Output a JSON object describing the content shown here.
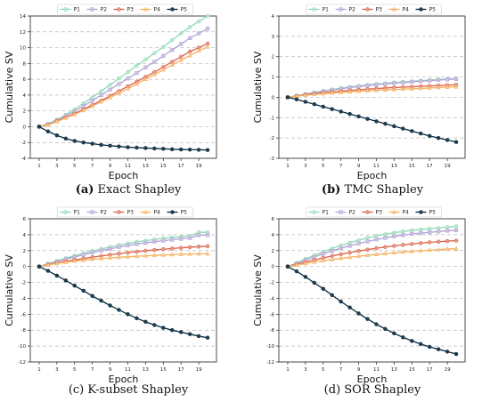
{
  "chart_data": [
    {
      "type": "line",
      "caption_label": "(a)",
      "caption_text": "Exact Shapley",
      "caption_bold": true,
      "xlabel": "Epoch",
      "ylabel": "Cumulative SV",
      "xlim": [
        0,
        21
      ],
      "ylim": [
        -4,
        14
      ],
      "yticks": [
        -4,
        -2,
        0,
        2,
        4,
        6,
        8,
        10,
        12,
        14
      ],
      "xticks": [
        1,
        3,
        5,
        7,
        9,
        11,
        13,
        15,
        17,
        19
      ],
      "x": [
        1,
        2,
        3,
        4,
        5,
        6,
        7,
        8,
        9,
        10,
        11,
        12,
        13,
        14,
        15,
        16,
        17,
        18,
        19,
        20
      ],
      "grid": "y-dashed",
      "legend": "top",
      "series": [
        {
          "name": "P1",
          "values": [
            0.0,
            0.35,
            0.9,
            1.5,
            2.2,
            2.95,
            3.7,
            4.5,
            5.3,
            6.1,
            6.9,
            7.7,
            8.5,
            9.3,
            10.1,
            10.95,
            11.8,
            12.6,
            13.3,
            14.0
          ]
        },
        {
          "name": "P2",
          "values": [
            0.0,
            0.3,
            0.8,
            1.35,
            1.95,
            2.6,
            3.3,
            4.0,
            4.7,
            5.4,
            6.1,
            6.8,
            7.5,
            8.2,
            8.95,
            9.7,
            10.45,
            11.2,
            11.8,
            12.4
          ]
        },
        {
          "name": "P3",
          "values": [
            0.0,
            0.25,
            0.7,
            1.15,
            1.65,
            2.2,
            2.75,
            3.3,
            3.9,
            4.5,
            5.1,
            5.7,
            6.3,
            6.9,
            7.55,
            8.2,
            8.85,
            9.5,
            10.0,
            10.5
          ]
        },
        {
          "name": "P4",
          "values": [
            0.0,
            0.22,
            0.65,
            1.1,
            1.55,
            2.05,
            2.6,
            3.15,
            3.7,
            4.25,
            4.8,
            5.4,
            6.0,
            6.6,
            7.2,
            7.8,
            8.4,
            9.0,
            9.6,
            10.1
          ]
        },
        {
          "name": "P5",
          "values": [
            0.0,
            -0.6,
            -1.1,
            -1.5,
            -1.8,
            -2.0,
            -2.15,
            -2.3,
            -2.4,
            -2.5,
            -2.6,
            -2.65,
            -2.7,
            -2.75,
            -2.8,
            -2.85,
            -2.88,
            -2.9,
            -2.92,
            -2.95
          ]
        }
      ]
    },
    {
      "type": "line",
      "caption_label": "(b)",
      "caption_text": "TMC Shapley",
      "caption_bold": true,
      "xlabel": "Epoch",
      "ylabel": "Cumulative SV",
      "xlim": [
        0,
        21
      ],
      "ylim": [
        -3,
        4
      ],
      "yticks": [
        -3,
        -2,
        -1,
        0,
        1,
        2,
        3,
        4
      ],
      "xticks": [
        1,
        3,
        5,
        7,
        9,
        11,
        13,
        15,
        17,
        19
      ],
      "x": [
        1,
        2,
        3,
        4,
        5,
        6,
        7,
        8,
        9,
        10,
        11,
        12,
        13,
        14,
        15,
        16,
        17,
        18,
        19,
        20
      ],
      "grid": "y-dashed",
      "legend": "top",
      "series": [
        {
          "name": "P1",
          "values": [
            0.0,
            0.08,
            0.16,
            0.24,
            0.32,
            0.39,
            0.45,
            0.51,
            0.56,
            0.61,
            0.65,
            0.69,
            0.73,
            0.76,
            0.79,
            0.82,
            0.85,
            0.88,
            0.9,
            0.92
          ]
        },
        {
          "name": "P2",
          "values": [
            0.0,
            0.07,
            0.15,
            0.22,
            0.29,
            0.36,
            0.42,
            0.48,
            0.53,
            0.58,
            0.62,
            0.66,
            0.7,
            0.73,
            0.76,
            0.79,
            0.82,
            0.85,
            0.88,
            0.9
          ]
        },
        {
          "name": "P3",
          "values": [
            0.0,
            0.06,
            0.12,
            0.17,
            0.22,
            0.26,
            0.3,
            0.34,
            0.37,
            0.4,
            0.43,
            0.46,
            0.48,
            0.5,
            0.52,
            0.54,
            0.56,
            0.58,
            0.6,
            0.62
          ]
        },
        {
          "name": "P4",
          "values": [
            0.0,
            0.05,
            0.1,
            0.14,
            0.18,
            0.21,
            0.24,
            0.27,
            0.3,
            0.32,
            0.34,
            0.36,
            0.38,
            0.4,
            0.42,
            0.44,
            0.46,
            0.48,
            0.5,
            0.52
          ]
        },
        {
          "name": "P5",
          "values": [
            0.0,
            -0.1,
            -0.22,
            -0.34,
            -0.46,
            -0.58,
            -0.7,
            -0.82,
            -0.94,
            -1.06,
            -1.18,
            -1.3,
            -1.42,
            -1.54,
            -1.66,
            -1.78,
            -1.9,
            -2.0,
            -2.1,
            -2.2
          ]
        }
      ]
    },
    {
      "type": "line",
      "caption_label": "(c)",
      "caption_text": "K-subset Shapley",
      "caption_bold": false,
      "xlabel": "Epoch",
      "ylabel": "Cumulative SV",
      "xlim": [
        0,
        21
      ],
      "ylim": [
        -12,
        6
      ],
      "yticks": [
        -12,
        -10,
        -8,
        -6,
        -4,
        -2,
        0,
        2,
        4,
        6
      ],
      "xticks": [
        1,
        3,
        5,
        7,
        9,
        11,
        13,
        15,
        17,
        19
      ],
      "x": [
        1,
        2,
        3,
        4,
        5,
        6,
        7,
        8,
        9,
        10,
        11,
        12,
        13,
        14,
        15,
        16,
        17,
        18,
        19,
        20
      ],
      "grid": "y-dashed",
      "legend": "top",
      "series": [
        {
          "name": "P1",
          "values": [
            0.0,
            0.35,
            0.7,
            1.05,
            1.35,
            1.65,
            1.95,
            2.2,
            2.45,
            2.7,
            2.9,
            3.1,
            3.25,
            3.4,
            3.55,
            3.65,
            3.75,
            3.85,
            4.3,
            4.3
          ]
        },
        {
          "name": "P2",
          "values": [
            0.0,
            0.3,
            0.62,
            0.92,
            1.2,
            1.48,
            1.75,
            2.0,
            2.22,
            2.45,
            2.65,
            2.82,
            2.98,
            3.12,
            3.25,
            3.37,
            3.48,
            3.58,
            3.95,
            3.95
          ]
        },
        {
          "name": "P3",
          "values": [
            0.0,
            0.22,
            0.44,
            0.64,
            0.82,
            1.0,
            1.17,
            1.33,
            1.48,
            1.62,
            1.75,
            1.87,
            1.98,
            2.08,
            2.17,
            2.26,
            2.35,
            2.43,
            2.5,
            2.55
          ]
        },
        {
          "name": "P4",
          "values": [
            0.0,
            0.2,
            0.38,
            0.54,
            0.68,
            0.8,
            0.91,
            1.0,
            1.08,
            1.16,
            1.23,
            1.29,
            1.35,
            1.4,
            1.45,
            1.5,
            1.54,
            1.57,
            1.6,
            1.6
          ]
        },
        {
          "name": "P5",
          "values": [
            0.0,
            -0.55,
            -1.15,
            -1.75,
            -2.4,
            -3.05,
            -3.7,
            -4.3,
            -4.9,
            -5.45,
            -6.0,
            -6.5,
            -6.95,
            -7.35,
            -7.7,
            -8.0,
            -8.25,
            -8.5,
            -8.75,
            -8.95
          ]
        }
      ]
    },
    {
      "type": "line",
      "caption_label": "(d)",
      "caption_text": "SOR Shapley",
      "caption_bold": false,
      "xlabel": "Epoch",
      "ylabel": "Cumulative SV",
      "xlim": [
        0,
        21
      ],
      "ylim": [
        -12,
        6
      ],
      "yticks": [
        -12,
        -10,
        -8,
        -6,
        -4,
        -2,
        0,
        2,
        4,
        6
      ],
      "xticks": [
        1,
        3,
        5,
        7,
        9,
        11,
        13,
        15,
        17,
        19
      ],
      "x": [
        1,
        2,
        3,
        4,
        5,
        6,
        7,
        8,
        9,
        10,
        11,
        12,
        13,
        14,
        15,
        16,
        17,
        18,
        19,
        20
      ],
      "grid": "y-dashed",
      "legend": "top",
      "series": [
        {
          "name": "P1",
          "values": [
            0.0,
            0.45,
            0.95,
            1.4,
            1.85,
            2.25,
            2.65,
            3.0,
            3.3,
            3.6,
            3.85,
            4.05,
            4.25,
            4.4,
            4.55,
            4.65,
            4.75,
            4.85,
            4.95,
            5.05
          ]
        },
        {
          "name": "P2",
          "values": [
            0.0,
            0.38,
            0.8,
            1.2,
            1.6,
            1.95,
            2.3,
            2.6,
            2.9,
            3.15,
            3.4,
            3.6,
            3.8,
            3.95,
            4.1,
            4.2,
            4.3,
            4.4,
            4.5,
            4.55
          ]
        },
        {
          "name": "P3",
          "values": [
            0.0,
            0.25,
            0.55,
            0.82,
            1.08,
            1.32,
            1.55,
            1.75,
            1.95,
            2.12,
            2.3,
            2.45,
            2.6,
            2.72,
            2.84,
            2.94,
            3.04,
            3.12,
            3.2,
            3.25
          ]
        },
        {
          "name": "P4",
          "values": [
            0.0,
            0.18,
            0.38,
            0.56,
            0.73,
            0.88,
            1.03,
            1.16,
            1.29,
            1.41,
            1.52,
            1.63,
            1.73,
            1.82,
            1.91,
            1.99,
            2.06,
            2.13,
            2.19,
            2.25
          ]
        },
        {
          "name": "P5",
          "values": [
            0.0,
            -0.6,
            -1.3,
            -2.05,
            -2.8,
            -3.6,
            -4.4,
            -5.15,
            -5.9,
            -6.6,
            -7.25,
            -7.85,
            -8.4,
            -8.9,
            -9.35,
            -9.75,
            -10.1,
            -10.4,
            -10.7,
            -11.0
          ]
        }
      ]
    }
  ],
  "series_colors": [
    "#8ed8b5",
    "#b0a3d4",
    "#d9604a",
    "#f5b060",
    "#0b2a3c"
  ],
  "series_marker_fills": [
    "#b8e8d0",
    "#cdc3e6",
    "#ea9a86",
    "#f8cf9a",
    "#1c3f55"
  ]
}
